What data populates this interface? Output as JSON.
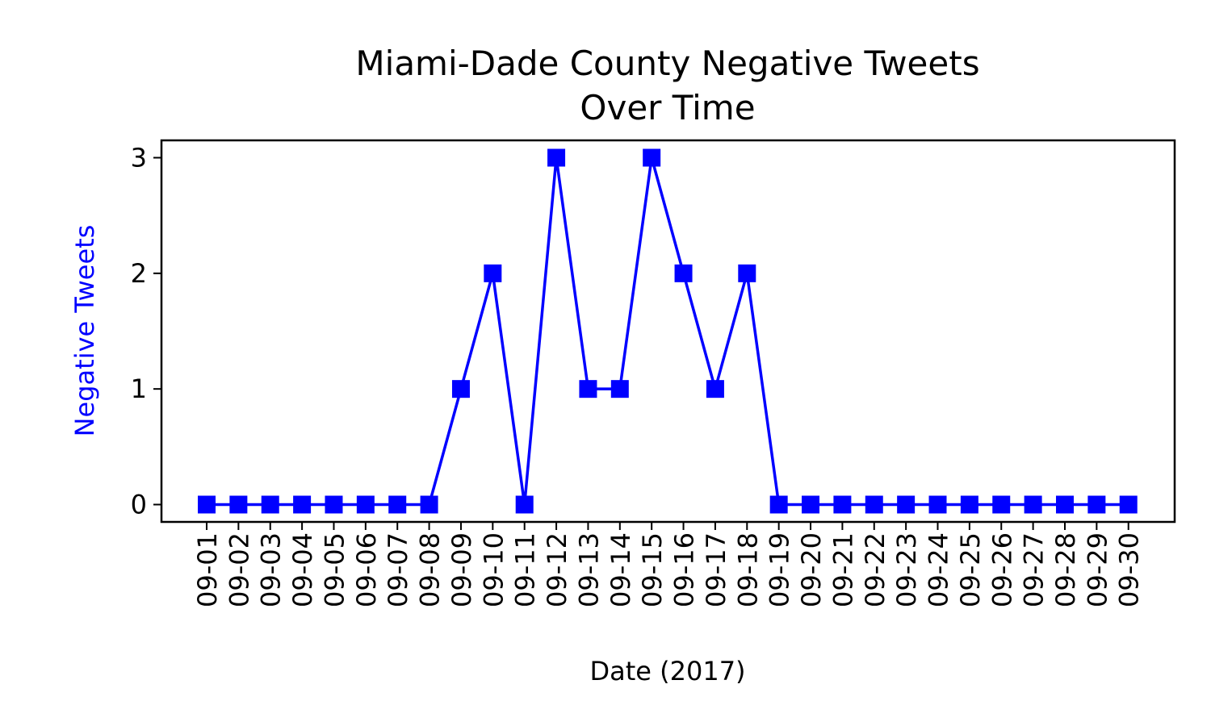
{
  "chart_data": {
    "type": "line",
    "title_lines": [
      "Miami-Dade County Negative Tweets",
      "Over Time"
    ],
    "xlabel": "Date (2017)",
    "ylabel": "Negative Tweets",
    "categories": [
      "09-01",
      "09-02",
      "09-03",
      "09-04",
      "09-05",
      "09-06",
      "09-07",
      "09-08",
      "09-09",
      "09-10",
      "09-11",
      "09-12",
      "09-13",
      "09-14",
      "09-15",
      "09-16",
      "09-17",
      "09-18",
      "09-19",
      "09-20",
      "09-21",
      "09-22",
      "09-23",
      "09-24",
      "09-25",
      "09-26",
      "09-27",
      "09-28",
      "09-29",
      "09-30"
    ],
    "values": [
      0,
      0,
      0,
      0,
      0,
      0,
      0,
      0,
      1,
      2,
      0,
      3,
      1,
      1,
      3,
      2,
      1,
      2,
      0,
      0,
      0,
      0,
      0,
      0,
      0,
      0,
      0,
      0,
      0,
      0
    ],
    "yticks": [
      0,
      1,
      2,
      3
    ],
    "ylim": [
      -0.15,
      3.15
    ],
    "marker": "square",
    "grid": false,
    "legend": "none",
    "colors": {
      "series": "#0000ff",
      "ylabel": "#0000ff",
      "axes": "#000000"
    }
  }
}
